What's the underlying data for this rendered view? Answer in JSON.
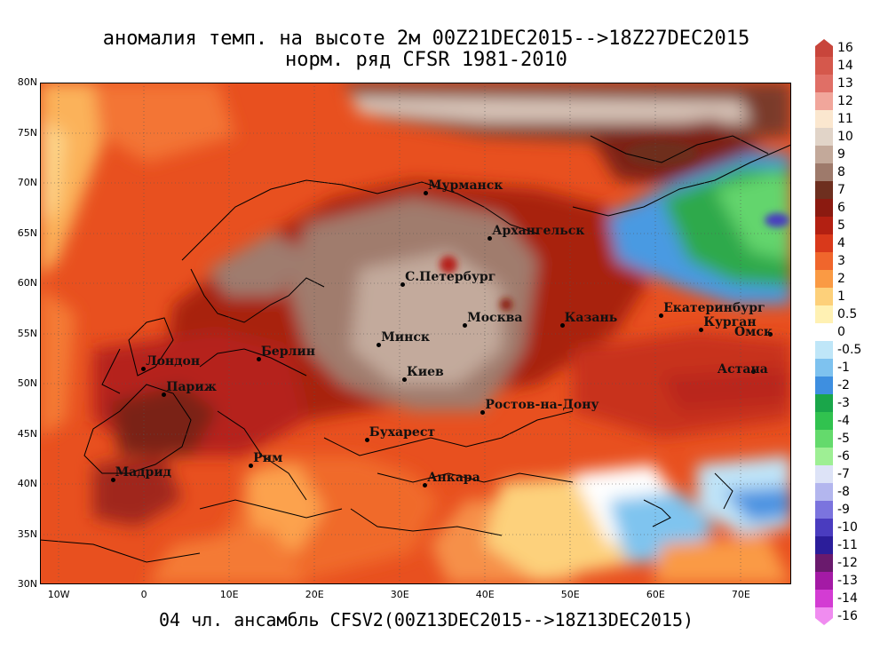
{
  "title_line1": "аномалия темп. на высоте 2м 00Z21DEC2015-->18Z27DEC2015",
  "title_line2": "норм. ряд CFSR 1981-2010",
  "bottom_caption": "04 чл. ансамбль CFSV2(00Z13DEC2015-->18Z13DEC2015)",
  "lat_labels": [
    "80N",
    "75N",
    "70N",
    "65N",
    "60N",
    "55N",
    "50N",
    "45N",
    "40N",
    "35N",
    "30N"
  ],
  "lon_labels": [
    "10W",
    "0",
    "10E",
    "20E",
    "30E",
    "40E",
    "50E",
    "60E",
    "70E"
  ],
  "cities": [
    {
      "name": "Мурманск",
      "lon": 33,
      "lat": 69
    },
    {
      "name": "Архангельск",
      "lon": 40.5,
      "lat": 64.5
    },
    {
      "name": "С.Петербург",
      "lon": 30.3,
      "lat": 59.9
    },
    {
      "name": "Москва",
      "lon": 37.6,
      "lat": 55.8
    },
    {
      "name": "Казань",
      "lon": 49,
      "lat": 55.8
    },
    {
      "name": "Екатеринбург",
      "lon": 60.6,
      "lat": 56.8
    },
    {
      "name": "Курган",
      "lon": 65.3,
      "lat": 55.4
    },
    {
      "name": "Омск",
      "lon": 73.4,
      "lat": 55
    },
    {
      "name": "Астана",
      "lon": 71.4,
      "lat": 51.2
    },
    {
      "name": "Минск",
      "lon": 27.5,
      "lat": 53.9
    },
    {
      "name": "Берлин",
      "lon": 13.4,
      "lat": 52.5
    },
    {
      "name": "Лондон",
      "lon": -0.1,
      "lat": 51.5
    },
    {
      "name": "Париж",
      "lon": 2.3,
      "lat": 48.9
    },
    {
      "name": "Киев",
      "lon": 30.5,
      "lat": 50.4
    },
    {
      "name": "Ростов-на-Дону",
      "lon": 39.7,
      "lat": 47.2
    },
    {
      "name": "Бухарест",
      "lon": 26.1,
      "lat": 44.4
    },
    {
      "name": "Рим",
      "lon": 12.5,
      "lat": 41.9
    },
    {
      "name": "Мадрид",
      "lon": -3.7,
      "lat": 40.4
    },
    {
      "name": "Анкара",
      "lon": 32.9,
      "lat": 39.9
    }
  ],
  "legend": [
    {
      "label": "16",
      "color": "#c8453b"
    },
    {
      "label": "14",
      "color": "#d5584c"
    },
    {
      "label": "13",
      "color": "#e06f66"
    },
    {
      "label": "12",
      "color": "#f1a69b"
    },
    {
      "label": "11",
      "color": "#fbe7cf"
    },
    {
      "label": "10",
      "color": "#e1d4c8"
    },
    {
      "label": "9",
      "color": "#c3a99a"
    },
    {
      "label": "8",
      "color": "#9e7a6b"
    },
    {
      "label": "7",
      "color": "#6e2f1f"
    },
    {
      "label": "6",
      "color": "#8b1a10"
    },
    {
      "label": "5",
      "color": "#b32012"
    },
    {
      "label": "4",
      "color": "#d9391b"
    },
    {
      "label": "3",
      "color": "#f0662c"
    },
    {
      "label": "2",
      "color": "#fa9a44"
    },
    {
      "label": "1",
      "color": "#fdd07a"
    },
    {
      "label": "0.5",
      "color": "#fff1b3"
    },
    {
      "label": "0",
      "color": "#ffffff"
    },
    {
      "label": "-0.5",
      "color": "#bfe6f8"
    },
    {
      "label": "-1",
      "color": "#7ec2ef"
    },
    {
      "label": "-2",
      "color": "#3e8fe0"
    },
    {
      "label": "-3",
      "color": "#1aa64a"
    },
    {
      "label": "-4",
      "color": "#31c24f"
    },
    {
      "label": "-5",
      "color": "#64da6c"
    },
    {
      "label": "-6",
      "color": "#9eef94"
    },
    {
      "label": "-7",
      "color": "#dde3f7"
    },
    {
      "label": "-8",
      "color": "#b3b6ee"
    },
    {
      "label": "-9",
      "color": "#7b74de"
    },
    {
      "label": "-10",
      "color": "#4a3cbf"
    },
    {
      "label": "-11",
      "color": "#2b1d9a"
    },
    {
      "label": "-12",
      "color": "#6a1a6d"
    },
    {
      "label": "-13",
      "color": "#a41aa5"
    },
    {
      "label": "-14",
      "color": "#d33cd3"
    },
    {
      "label": "-16",
      "color": "#f08cf0"
    }
  ]
}
